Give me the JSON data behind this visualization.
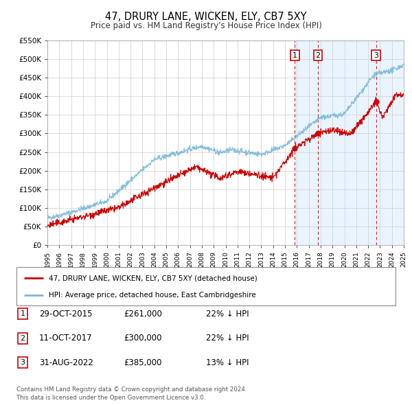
{
  "title": "47, DRURY LANE, WICKEN, ELY, CB7 5XY",
  "subtitle": "Price paid vs. HM Land Registry's House Price Index (HPI)",
  "xlim": [
    1995,
    2025
  ],
  "ylim": [
    0,
    550000
  ],
  "yticks": [
    0,
    50000,
    100000,
    150000,
    200000,
    250000,
    300000,
    350000,
    400000,
    450000,
    500000,
    550000
  ],
  "hpi_color": "#7ab8d9",
  "price_color": "#cc0000",
  "sale_dot_color": "#cc0000",
  "shade_color": "#ddeeff",
  "vline_color": "#cc0000",
  "grid_color": "#cccccc",
  "background_color": "#ffffff",
  "sale_events": [
    {
      "label": "1",
      "date_str": "29-OCT-2015",
      "year": 2015.83,
      "price": 261000,
      "pct": "22%",
      "dir": "↓"
    },
    {
      "label": "2",
      "date_str": "11-OCT-2017",
      "year": 2017.78,
      "price": 300000,
      "pct": "22%",
      "dir": "↓"
    },
    {
      "label": "3",
      "date_str": "31-AUG-2022",
      "year": 2022.67,
      "price": 385000,
      "pct": "13%",
      "dir": "↓"
    }
  ],
  "legend_label_price": "47, DRURY LANE, WICKEN, ELY, CB7 5XY (detached house)",
  "legend_label_hpi": "HPI: Average price, detached house, East Cambridgeshire",
  "footer1": "Contains HM Land Registry data © Crown copyright and database right 2024.",
  "footer2": "This data is licensed under the Open Government Licence v3.0.",
  "shade_start": 2015.83,
  "shade_end": 2025.0
}
